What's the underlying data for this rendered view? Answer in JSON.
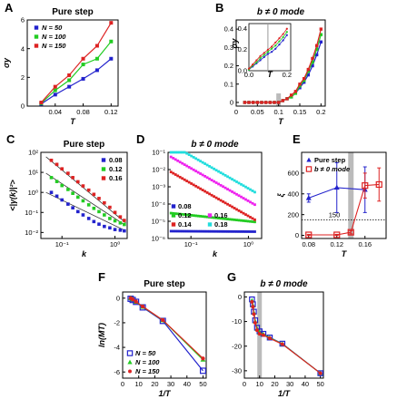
{
  "chart_data": [
    {
      "panel": "A",
      "type": "line",
      "title": "Pure step",
      "xlabel": "T",
      "ylabel": "σy",
      "xlim": [
        0,
        0.13
      ],
      "ylim": [
        0,
        6
      ],
      "xticks": [
        0.04,
        0.08,
        0.12
      ],
      "yticks": [
        0,
        2,
        4,
        6
      ],
      "legend": "top-left",
      "series": [
        {
          "name": "N = 50",
          "color": "#2222cc",
          "marker": "square",
          "x": [
            0.02,
            0.04,
            0.06,
            0.08,
            0.1,
            0.12
          ],
          "y": [
            0.15,
            0.8,
            1.35,
            1.9,
            2.5,
            3.3
          ]
        },
        {
          "name": "N = 100",
          "color": "#22cc22",
          "marker": "square",
          "x": [
            0.02,
            0.04,
            0.06,
            0.08,
            0.1,
            0.12
          ],
          "y": [
            0.2,
            1.1,
            1.8,
            2.9,
            3.3,
            4.5
          ]
        },
        {
          "name": "N = 150",
          "color": "#dd2222",
          "marker": "square",
          "x": [
            0.02,
            0.04,
            0.06,
            0.08,
            0.1,
            0.12
          ],
          "y": [
            0.25,
            1.35,
            2.15,
            3.3,
            4.2,
            5.8
          ]
        }
      ]
    },
    {
      "panel": "B",
      "type": "line",
      "title": "b ≠ 0 mode",
      "xlabel": "T",
      "ylabel": "",
      "xlim": [
        0.0,
        0.21
      ],
      "ylim": [
        -0.02,
        0.45
      ],
      "xticks": [
        0.0,
        0.05,
        0.1,
        0.15,
        0.2
      ],
      "yticks": [
        0.0,
        0.1,
        0.2,
        0.3,
        0.4
      ],
      "shaded_x": 0.1,
      "series": [
        {
          "name": "N = 50",
          "color": "#2222cc",
          "x": [
            0.02,
            0.03,
            0.04,
            0.05,
            0.06,
            0.07,
            0.08,
            0.09,
            0.1,
            0.11,
            0.12,
            0.13,
            0.14,
            0.15,
            0.16,
            0.17,
            0.18,
            0.19,
            0.2
          ],
          "y": [
            0,
            0,
            0,
            0,
            0,
            0,
            0,
            0,
            0,
            0.01,
            0.02,
            0.03,
            0.05,
            0.08,
            0.11,
            0.15,
            0.2,
            0.26,
            0.33
          ]
        },
        {
          "name": "N = 100",
          "color": "#22cc22",
          "x": [
            0.02,
            0.03,
            0.04,
            0.05,
            0.06,
            0.07,
            0.08,
            0.09,
            0.1,
            0.11,
            0.12,
            0.13,
            0.14,
            0.15,
            0.16,
            0.17,
            0.18,
            0.19,
            0.2
          ],
          "y": [
            0,
            0,
            0,
            0,
            0,
            0,
            0,
            0,
            0,
            0.01,
            0.02,
            0.03,
            0.05,
            0.09,
            0.12,
            0.17,
            0.22,
            0.29,
            0.37
          ]
        },
        {
          "name": "N = 150",
          "color": "#dd2222",
          "x": [
            0.02,
            0.03,
            0.04,
            0.05,
            0.06,
            0.07,
            0.08,
            0.09,
            0.1,
            0.11,
            0.12,
            0.13,
            0.14,
            0.15,
            0.16,
            0.17,
            0.18,
            0.19,
            0.2
          ],
          "y": [
            0,
            0,
            0,
            0,
            0,
            0,
            0,
            0,
            0,
            0.01,
            0.02,
            0.04,
            0.06,
            0.1,
            0.13,
            0.18,
            0.24,
            0.31,
            0.4
          ]
        }
      ],
      "inset": {
        "xlabel": "T",
        "ylabel": "σy",
        "xlim": [
          0,
          0.22
        ],
        "ylim": [
          0,
          0.45
        ],
        "xticks": [
          0.0,
          0.2
        ],
        "xticklabels": [
          "0.0",
          "0.2"
        ],
        "yticks": [
          0.0,
          0.2,
          0.4
        ],
        "vline_x": 0.1,
        "series": [
          {
            "color": "#2222cc",
            "x": [
              0.0,
              0.02,
              0.04,
              0.06,
              0.08,
              0.1,
              0.12,
              0.14,
              0.16,
              0.18,
              0.2
            ],
            "y": [
              0.01,
              0.04,
              0.07,
              0.1,
              0.13,
              0.16,
              0.18,
              0.21,
              0.25,
              0.29,
              0.34
            ]
          },
          {
            "color": "#22cc22",
            "x": [
              0.0,
              0.02,
              0.04,
              0.06,
              0.08,
              0.1,
              0.12,
              0.14,
              0.16,
              0.18,
              0.2
            ],
            "y": [
              0.01,
              0.05,
              0.08,
              0.12,
              0.15,
              0.18,
              0.21,
              0.24,
              0.28,
              0.32,
              0.37
            ]
          },
          {
            "color": "#dd2222",
            "x": [
              0.0,
              0.02,
              0.04,
              0.06,
              0.08,
              0.1,
              0.12,
              0.14,
              0.16,
              0.18,
              0.2
            ],
            "y": [
              0.02,
              0.06,
              0.1,
              0.14,
              0.17,
              0.2,
              0.23,
              0.27,
              0.31,
              0.35,
              0.4
            ]
          }
        ]
      }
    },
    {
      "panel": "C",
      "type": "scatter",
      "title": "Pure step",
      "xlabel": "k",
      "ylabel": "<|γ(k)|²>",
      "xscale": "log",
      "yscale": "log",
      "xlim": [
        0.04,
        1.7
      ],
      "ylim": [
        0.005,
        100
      ],
      "xticks": [
        0.1,
        1
      ],
      "yticks": [
        0.01,
        0.1,
        1,
        10,
        100
      ],
      "xticklabels": [
        "10⁻¹",
        "10⁰"
      ],
      "yticklabels": [
        "10⁻²",
        "10⁻¹",
        "10⁰",
        "10¹",
        "10²"
      ],
      "legend": "top-right",
      "series": [
        {
          "name": "0.08",
          "color": "#2222cc",
          "fit": [
            0.05,
            1.0,
            1.6,
            0.012
          ],
          "x": [
            0.063,
            0.08,
            0.1,
            0.13,
            0.16,
            0.2,
            0.25,
            0.32,
            0.4,
            0.5,
            0.63,
            0.8,
            1.0,
            1.26,
            1.5
          ],
          "y": [
            1.0,
            0.65,
            0.42,
            0.26,
            0.17,
            0.11,
            0.075,
            0.05,
            0.035,
            0.026,
            0.02,
            0.017,
            0.014,
            0.013,
            0.012
          ]
        },
        {
          "name": "0.12",
          "color": "#22cc22",
          "fit": [
            0.05,
            9.0,
            1.6,
            0.022
          ],
          "x": [
            0.063,
            0.08,
            0.1,
            0.13,
            0.16,
            0.2,
            0.25,
            0.32,
            0.4,
            0.5,
            0.63,
            0.8,
            1.0,
            1.26,
            1.5
          ],
          "y": [
            5.5,
            3.5,
            2.2,
            1.4,
            0.9,
            0.58,
            0.38,
            0.24,
            0.16,
            0.11,
            0.075,
            0.05,
            0.038,
            0.03,
            0.025
          ]
        },
        {
          "name": "0.16",
          "color": "#dd2222",
          "fit": [
            0.05,
            60.0,
            1.6,
            0.03
          ],
          "x": [
            0.063,
            0.08,
            0.1,
            0.13,
            0.16,
            0.2,
            0.25,
            0.32,
            0.4,
            0.5,
            0.63,
            0.8,
            1.0,
            1.26,
            1.5
          ],
          "y": [
            40,
            25,
            15,
            9,
            5.5,
            3.4,
            2.1,
            1.3,
            0.8,
            0.5,
            0.3,
            0.18,
            0.1,
            0.06,
            0.04
          ]
        }
      ]
    },
    {
      "panel": "D",
      "type": "scatter",
      "title": "b ≠ 0 mode",
      "xlabel": "k",
      "ylabel": "",
      "xscale": "log",
      "yscale": "log",
      "xlim": [
        0.04,
        1.7
      ],
      "ylim": [
        1e-06,
        0.1
      ],
      "xticks": [
        0.1,
        1
      ],
      "yticks": [
        1e-06,
        1e-05,
        0.0001,
        0.001,
        0.01,
        0.1
      ],
      "xticklabels": [
        "10⁻¹",
        "10⁰"
      ],
      "yticklabels": [
        "10⁻⁶",
        "10⁻⁵",
        "10⁻⁴",
        "10⁻³",
        "10⁻²",
        "10⁻¹"
      ],
      "legend": "bottom-left",
      "series": [
        {
          "name": "0.08",
          "color": "#2222cc",
          "k0": 2.5e-06,
          "alpha": 0.02
        },
        {
          "name": "0.12",
          "color": "#22cc22",
          "k0": 1e-05,
          "alpha": 0.35
        },
        {
          "name": "0.14",
          "color": "#dd2222",
          "k0": 2e-05,
          "alpha": 1.9
        },
        {
          "name": "0.16",
          "color": "#ee22ee",
          "k0": 0.00015,
          "alpha": 1.9
        },
        {
          "name": "0.18",
          "color": "#22dddd",
          "k0": 0.0008,
          "alpha": 1.9
        }
      ]
    },
    {
      "panel": "E",
      "type": "errorbar",
      "title": "",
      "xlabel": "T",
      "ylabel": "ξ",
      "xlim": [
        0.07,
        0.19
      ],
      "ylim": [
        -30,
        800
      ],
      "xticks": [
        0.08,
        0.12,
        0.16
      ],
      "yticks": [
        0,
        200,
        400,
        600
      ],
      "shaded_x": 0.14,
      "hline": 150,
      "hline_label": "150",
      "legend": "top-left",
      "series": [
        {
          "name": "Pure step",
          "color": "#2222cc",
          "marker": "triangle",
          "x": [
            0.08,
            0.12,
            0.16
          ],
          "y": [
            360,
            460,
            440
          ],
          "err": [
            40,
            240,
            220
          ]
        },
        {
          "name": "b ≠ 0 mode",
          "color": "#dd2222",
          "marker": "square-open",
          "x": [
            0.08,
            0.12,
            0.14,
            0.16,
            0.18
          ],
          "y": [
            5,
            5,
            30,
            480,
            490
          ],
          "err": [
            5,
            5,
            15,
            120,
            160
          ]
        }
      ]
    },
    {
      "panel": "F",
      "type": "line",
      "title": "Pure step",
      "xlabel": "1/T",
      "ylabel": "ln(MT)",
      "xlim": [
        0,
        52
      ],
      "ylim": [
        -6.5,
        0.5
      ],
      "xticks": [
        0,
        10,
        20,
        30,
        40,
        50
      ],
      "yticks": [
        0,
        -2,
        -4,
        -6
      ],
      "legend": "bottom-left",
      "series": [
        {
          "name": "N = 50",
          "color": "#2222cc",
          "marker": "square-open",
          "x": [
            5,
            6.25,
            8.33,
            12.5,
            25,
            50
          ],
          "y": [
            -0.05,
            -0.15,
            -0.3,
            -0.75,
            -1.85,
            -5.9
          ]
        },
        {
          "name": "N = 100",
          "color": "#22cc22",
          "marker": "triangle",
          "x": [
            5,
            6.25,
            8.33,
            12.5,
            25,
            50
          ],
          "y": [
            0.0,
            -0.1,
            -0.3,
            -0.7,
            -1.8,
            -5.0
          ]
        },
        {
          "name": "N = 150",
          "color": "#dd2222",
          "marker": "circle",
          "x": [
            5,
            6.25,
            8.33,
            12.5,
            25,
            50
          ],
          "y": [
            0.0,
            -0.1,
            -0.28,
            -0.68,
            -1.78,
            -4.9
          ]
        }
      ]
    },
    {
      "panel": "G",
      "type": "line",
      "title": "b ≠ 0 mode",
      "xlabel": "1/T",
      "ylabel": "",
      "xlim": [
        0,
        52
      ],
      "ylim": [
        -33,
        2
      ],
      "xticks": [
        0,
        10,
        20,
        30,
        40,
        50
      ],
      "yticks": [
        0,
        -10,
        -20,
        -30
      ],
      "shaded_x": 10,
      "series": [
        {
          "color": "#2222cc",
          "marker": "square-open",
          "x": [
            5,
            5.6,
            6.25,
            7.1,
            8.33,
            10,
            12.5,
            16.7,
            25,
            50
          ],
          "y": [
            -1,
            -3,
            -6,
            -9.5,
            -12.5,
            -14,
            -15,
            -16.5,
            -19,
            -31
          ]
        },
        {
          "color": "#22cc22",
          "marker": "triangle",
          "x": [
            5,
            5.6,
            6.25,
            7.1,
            8.33,
            10,
            12.5,
            16.7,
            25,
            50
          ],
          "y": [
            -1.5,
            -3.5,
            -6.5,
            -10,
            -13,
            -14.5,
            -15.2,
            -16.6,
            -19.1,
            -31
          ]
        },
        {
          "color": "#dd2222",
          "marker": "circle",
          "x": [
            5,
            5.6,
            6.25,
            7.1,
            8.33,
            10,
            12.5,
            16.7,
            25,
            50
          ],
          "y": [
            -2,
            -4,
            -7,
            -10.5,
            -13.5,
            -15,
            -15.5,
            -16.8,
            -19.2,
            -31
          ]
        }
      ]
    }
  ]
}
